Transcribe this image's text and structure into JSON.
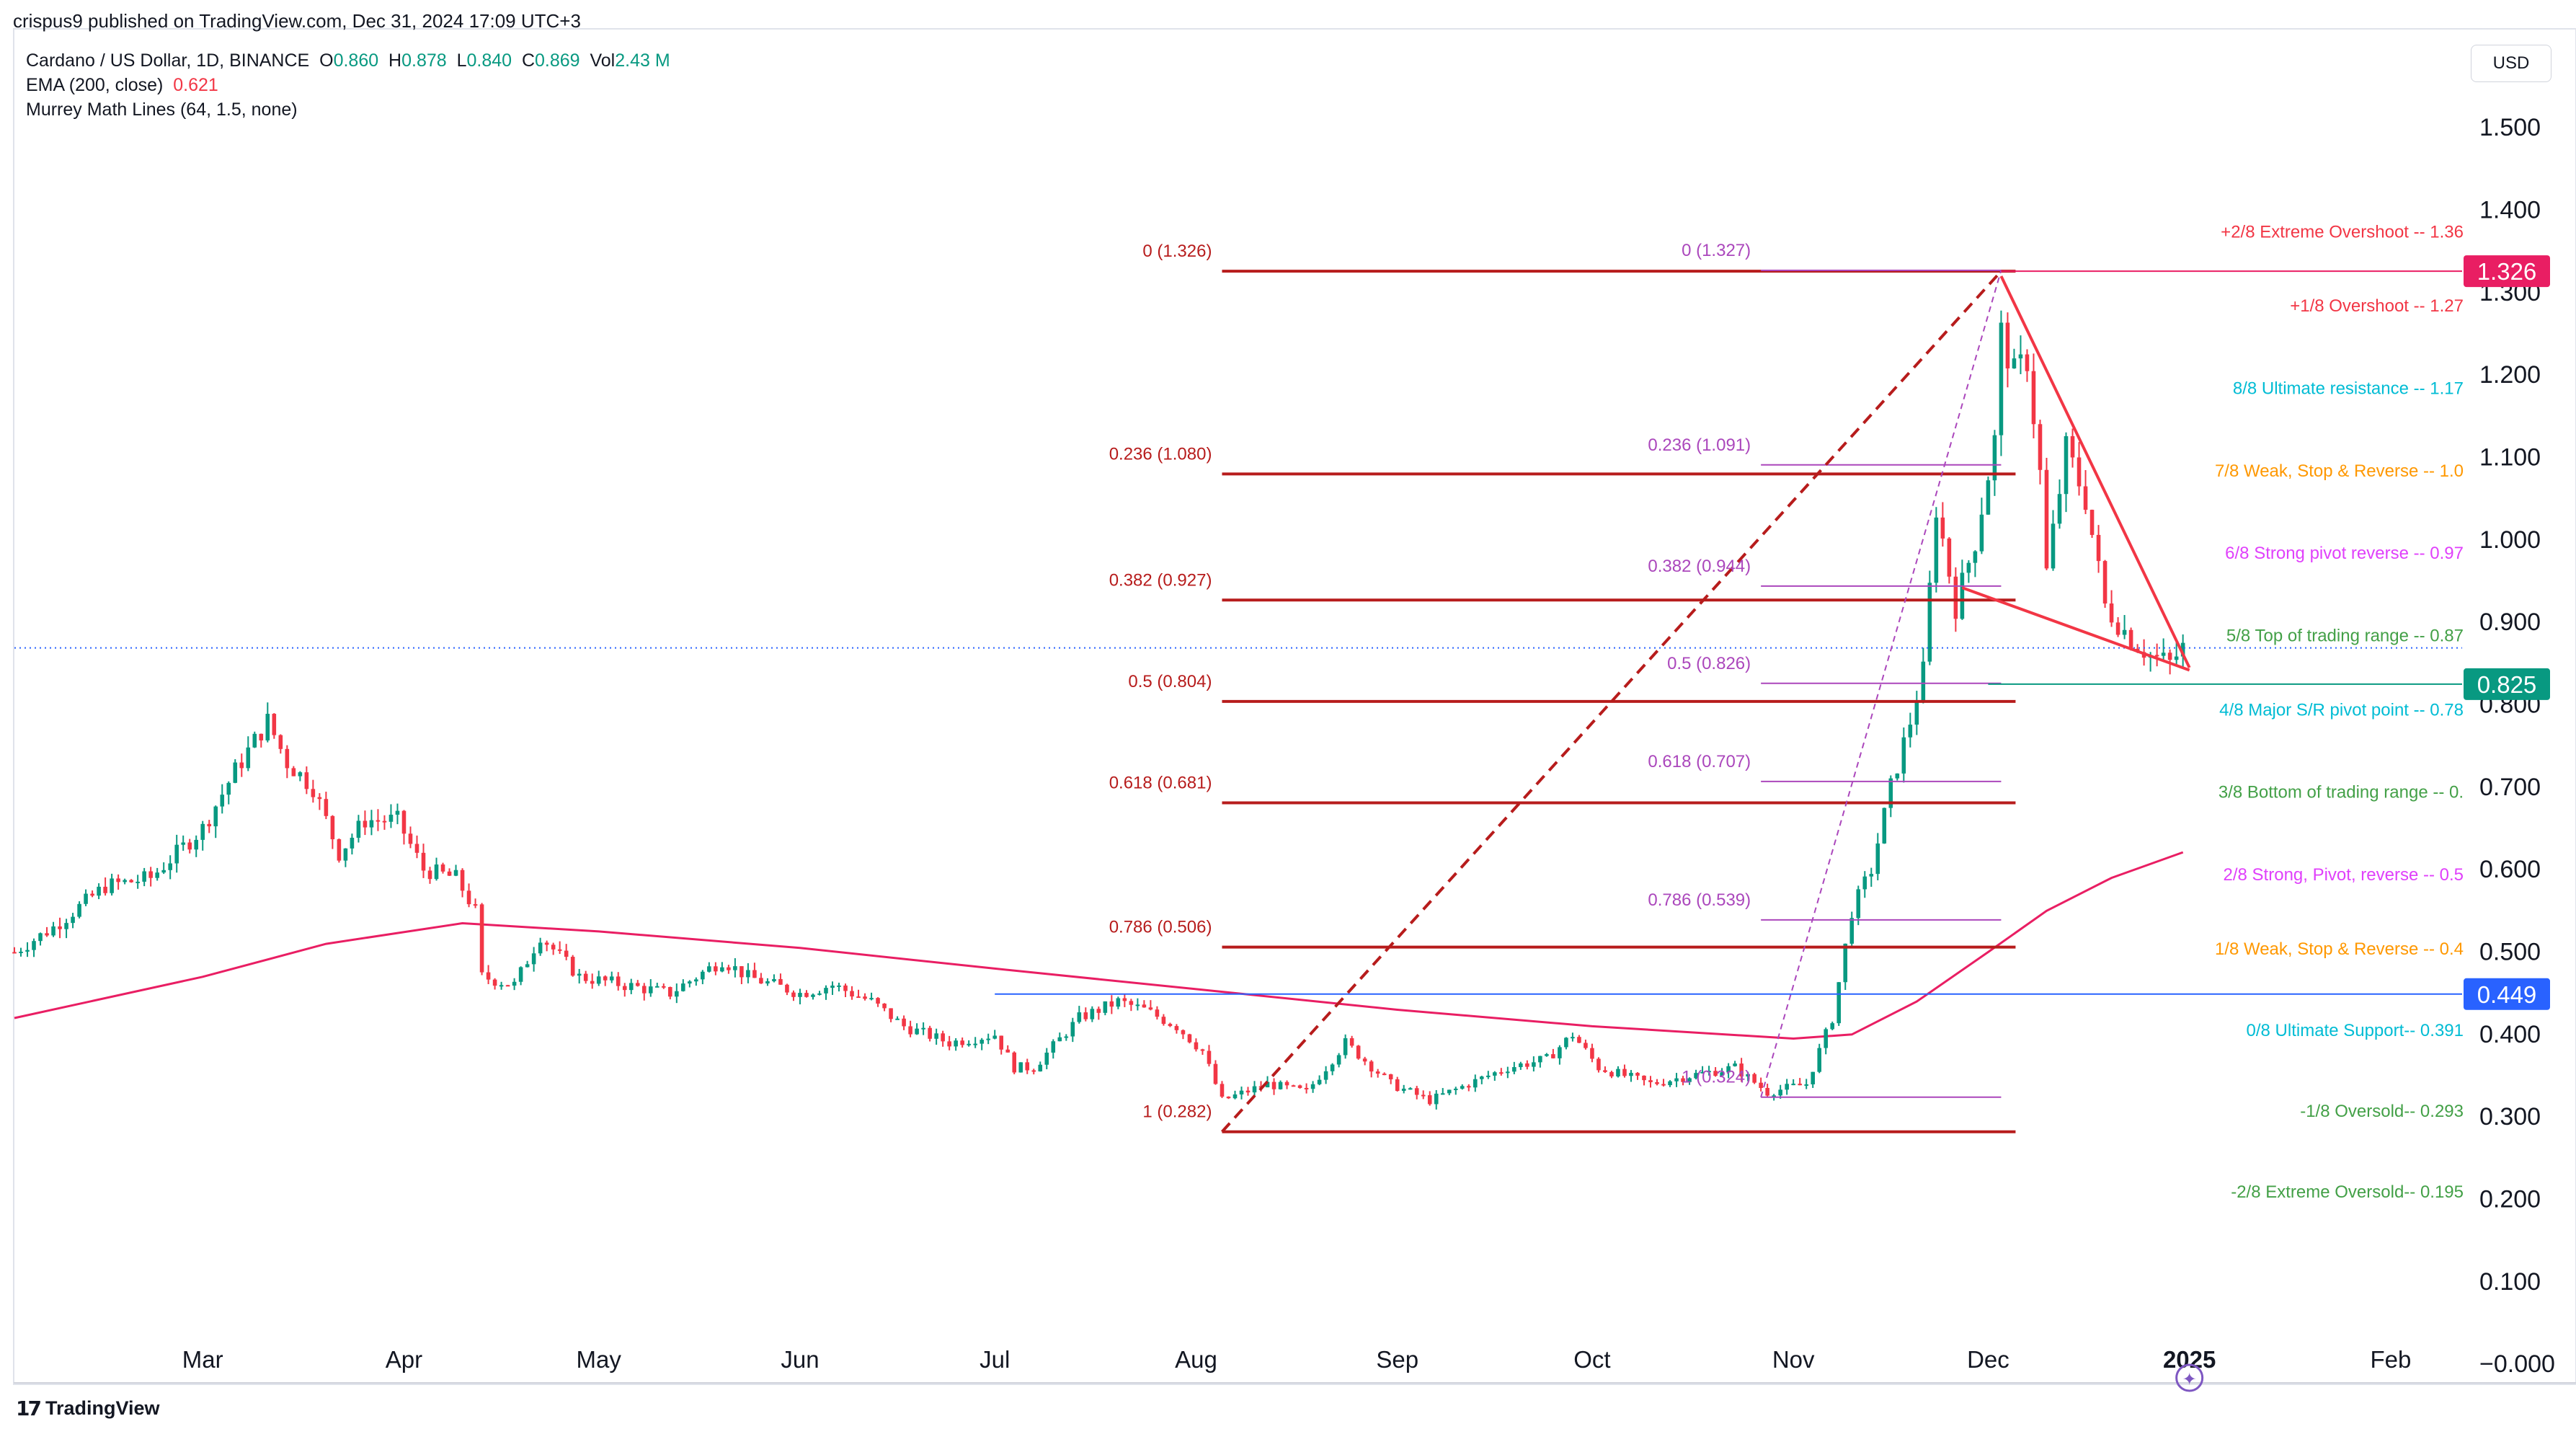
{
  "header": {
    "published": "crispus9 published on TradingView.com, Dec 31, 2024 17:09 UTC+3",
    "symbol": "Cardano / US Dollar, 1D, BINANCE",
    "o_label": "O",
    "o_value": "0.860",
    "h_label": "H",
    "h_value": "0.878",
    "l_label": "L",
    "l_value": "0.840",
    "c_label": "C",
    "c_value": "0.869",
    "vol_label": "Vol",
    "vol_value": "2.43 M",
    "ema_label": "EMA (200, close)",
    "ema_value": "0.621",
    "murrey_label": "Murrey Math Lines (64, 1.5, none)",
    "currency": "USD"
  },
  "footer": {
    "brand": "TradingView",
    "logo_icon": "tradingview-logo-icon"
  },
  "chart_data": {
    "type": "candlestick",
    "title": "Cardano / US Dollar, 1D, BINANCE",
    "y_ticks": [
      "1.500",
      "1.400",
      "1.300",
      "1.200",
      "1.100",
      "1.000",
      "0.900",
      "0.800",
      "0.700",
      "0.600",
      "0.500",
      "0.400",
      "0.300",
      "0.200",
      "0.100",
      "−0.000"
    ],
    "ylim": [
      -0.02,
      1.62
    ],
    "x_ticks": [
      {
        "label": "Mar",
        "date": "2024-03-01"
      },
      {
        "label": "Apr",
        "date": "2024-04-01"
      },
      {
        "label": "May",
        "date": "2024-05-01"
      },
      {
        "label": "Jun",
        "date": "2024-06-01"
      },
      {
        "label": "Jul",
        "date": "2024-07-01"
      },
      {
        "label": "Aug",
        "date": "2024-08-01"
      },
      {
        "label": "Sep",
        "date": "2024-09-01"
      },
      {
        "label": "Oct",
        "date": "2024-10-01"
      },
      {
        "label": "Nov",
        "date": "2024-11-01"
      },
      {
        "label": "Dec",
        "date": "2024-12-01"
      },
      {
        "label": "2025",
        "date": "2025-01-01",
        "bold": true
      },
      {
        "label": "Feb",
        "date": "2025-02-01"
      }
    ],
    "xlim": [
      "2024-02-01",
      "2025-02-12"
    ],
    "price_anchors": [
      [
        "2024-02-01",
        0.5
      ],
      [
        "2024-02-07",
        0.53
      ],
      [
        "2024-02-15",
        0.58
      ],
      [
        "2024-02-22",
        0.59
      ],
      [
        "2024-03-01",
        0.65
      ],
      [
        "2024-03-06",
        0.72
      ],
      [
        "2024-03-11",
        0.78
      ],
      [
        "2024-03-14",
        0.73
      ],
      [
        "2024-03-18",
        0.7
      ],
      [
        "2024-03-22",
        0.62
      ],
      [
        "2024-03-26",
        0.66
      ],
      [
        "2024-03-31",
        0.66
      ],
      [
        "2024-04-04",
        0.6
      ],
      [
        "2024-04-09",
        0.59
      ],
      [
        "2024-04-12",
        0.55
      ],
      [
        "2024-04-13",
        0.47
      ],
      [
        "2024-04-18",
        0.46
      ],
      [
        "2024-04-22",
        0.52
      ],
      [
        "2024-04-28",
        0.47
      ],
      [
        "2024-05-05",
        0.46
      ],
      [
        "2024-05-12",
        0.45
      ],
      [
        "2024-05-16",
        0.47
      ],
      [
        "2024-05-20",
        0.49
      ],
      [
        "2024-05-24",
        0.47
      ],
      [
        "2024-06-01",
        0.45
      ],
      [
        "2024-06-06",
        0.46
      ],
      [
        "2024-06-12",
        0.44
      ],
      [
        "2024-06-17",
        0.41
      ],
      [
        "2024-06-24",
        0.39
      ],
      [
        "2024-07-01",
        0.4
      ],
      [
        "2024-07-04",
        0.36
      ],
      [
        "2024-07-07",
        0.36
      ],
      [
        "2024-07-14",
        0.42
      ],
      [
        "2024-07-20",
        0.44
      ],
      [
        "2024-07-24",
        0.43
      ],
      [
        "2024-07-29",
        0.41
      ],
      [
        "2024-08-02",
        0.38
      ],
      [
        "2024-08-05",
        0.32
      ],
      [
        "2024-08-12",
        0.34
      ],
      [
        "2024-08-18",
        0.33
      ],
      [
        "2024-08-24",
        0.39
      ],
      [
        "2024-08-31",
        0.34
      ],
      [
        "2024-09-06",
        0.32
      ],
      [
        "2024-09-12",
        0.34
      ],
      [
        "2024-09-18",
        0.36
      ],
      [
        "2024-09-24",
        0.37
      ],
      [
        "2024-09-28",
        0.4
      ],
      [
        "2024-10-02",
        0.36
      ],
      [
        "2024-10-10",
        0.34
      ],
      [
        "2024-10-16",
        0.35
      ],
      [
        "2024-10-23",
        0.36
      ],
      [
        "2024-10-28",
        0.33
      ],
      [
        "2024-11-03",
        0.34
      ],
      [
        "2024-11-07",
        0.42
      ],
      [
        "2024-11-10",
        0.55
      ],
      [
        "2024-11-13",
        0.6
      ],
      [
        "2024-11-16",
        0.7
      ],
      [
        "2024-11-19",
        0.78
      ],
      [
        "2024-11-21",
        0.84
      ],
      [
        "2024-11-23",
        1.04
      ],
      [
        "2024-11-26",
        0.92
      ],
      [
        "2024-11-29",
        1.0
      ],
      [
        "2024-12-02",
        1.12
      ],
      [
        "2024-12-03",
        1.25
      ],
      [
        "2024-12-05",
        1.2
      ],
      [
        "2024-12-07",
        1.22
      ],
      [
        "2024-12-09",
        1.08
      ],
      [
        "2024-12-10",
        0.96
      ],
      [
        "2024-12-13",
        1.11
      ],
      [
        "2024-12-16",
        1.05
      ],
      [
        "2024-12-19",
        0.92
      ],
      [
        "2024-12-20",
        0.91
      ],
      [
        "2024-12-23",
        0.88
      ],
      [
        "2024-12-26",
        0.86
      ],
      [
        "2024-12-29",
        0.85
      ],
      [
        "2024-12-31",
        0.869
      ]
    ],
    "ema_200": [
      [
        "2024-02-01",
        0.42
      ],
      [
        "2024-03-01",
        0.47
      ],
      [
        "2024-03-20",
        0.51
      ],
      [
        "2024-04-10",
        0.535
      ],
      [
        "2024-05-01",
        0.525
      ],
      [
        "2024-06-01",
        0.505
      ],
      [
        "2024-07-01",
        0.48
      ],
      [
        "2024-08-01",
        0.455
      ],
      [
        "2024-09-01",
        0.43
      ],
      [
        "2024-10-01",
        0.41
      ],
      [
        "2024-11-01",
        0.395
      ],
      [
        "2024-11-10",
        0.4
      ],
      [
        "2024-11-20",
        0.44
      ],
      [
        "2024-12-01",
        0.5
      ],
      [
        "2024-12-10",
        0.55
      ],
      [
        "2024-12-20",
        0.59
      ],
      [
        "2024-12-31",
        0.621
      ]
    ],
    "fib_retracement_left": {
      "line_color": "#b71c1c",
      "start_date": "2024-08-05",
      "end_date": "2024-12-03",
      "levels": [
        {
          "label": "0 (1.326)",
          "value": 1.326
        },
        {
          "label": "0.236 (1.080)",
          "value": 1.08
        },
        {
          "label": "0.382 (0.927)",
          "value": 0.927
        },
        {
          "label": "0.5 (0.804)",
          "value": 0.804
        },
        {
          "label": "0.618 (0.681)",
          "value": 0.681
        },
        {
          "label": "0.786 (0.506)",
          "value": 0.506
        },
        {
          "label": "1 (0.282)",
          "value": 0.282
        }
      ]
    },
    "fib_retracement_right": {
      "line_color": "#ab47bc",
      "start_date": "2024-10-27",
      "end_date": "2024-12-03",
      "levels": [
        {
          "label": "0 (1.327)",
          "value": 1.327
        },
        {
          "label": "0.236 (1.091)",
          "value": 1.091
        },
        {
          "label": "0.382 (0.944)",
          "value": 0.944
        },
        {
          "label": "0.5 (0.826)",
          "value": 0.826
        },
        {
          "label": "0.618 (0.707)",
          "value": 0.707
        },
        {
          "label": "0.786 (0.539)",
          "value": 0.539
        },
        {
          "label": "1 (0.324)",
          "value": 0.324
        }
      ]
    },
    "murrey_lines": [
      {
        "label": "+2/8 Extreme Overshoot --  1.36",
        "value": 1.36,
        "color": "#f23645"
      },
      {
        "label": "+1/8 Overshoot --  1.27",
        "value": 1.27,
        "color": "#f23645"
      },
      {
        "label": "8/8 Ultimate resistance --  1.17",
        "value": 1.17,
        "color": "#00bcd4"
      },
      {
        "label": "7/8 Weak, Stop & Reverse --  1.0",
        "value": 1.07,
        "color": "#ff9800"
      },
      {
        "label": "6/8 Strong pivot reverse --  0.97",
        "value": 0.97,
        "color": "#e040fb"
      },
      {
        "label": "5/8 Top of trading range --  0.87",
        "value": 0.87,
        "color": "#43a047"
      },
      {
        "label": "4/8 Major S/R pivot point --  0.78",
        "value": 0.78,
        "color": "#00bcd4"
      },
      {
        "label": "3/8 Bottom of trading range --  0.",
        "value": 0.68,
        "color": "#43a047"
      },
      {
        "label": "2/8 Strong, Pivot, reverse --  0.5",
        "value": 0.58,
        "color": "#e040fb"
      },
      {
        "label": "1/8 Weak, Stop & Reverse --  0.4",
        "value": 0.49,
        "color": "#ff9800"
      },
      {
        "label": "0/8 Ultimate Support--  0.391",
        "value": 0.391,
        "color": "#00bcd4"
      },
      {
        "label": "-1/8 Oversold--  0.293",
        "value": 0.293,
        "color": "#43a047"
      },
      {
        "label": "-2/8 Extreme Oversold--  0.195",
        "value": 0.195,
        "color": "#43a047"
      }
    ],
    "price_tags": [
      {
        "label": "1.326",
        "value": 1.326,
        "color": "#e91e63"
      },
      {
        "label": "0.825",
        "value": 0.825,
        "color": "#089981"
      },
      {
        "label": "0.449",
        "value": 0.449,
        "color": "#2962ff"
      }
    ],
    "horizontal_lines": [
      {
        "value": 0.449,
        "start_date": "2024-07-01",
        "color": "#2962ff"
      },
      {
        "value": 0.825,
        "start_date": "2024-12-01",
        "color": "#089981"
      },
      {
        "value": 1.326,
        "start_date": "2024-12-03",
        "color": "#e91e63"
      }
    ],
    "current_price_line": 0.869,
    "trend_lines": [
      {
        "from": [
          "2024-08-05",
          0.282
        ],
        "to": [
          "2024-12-03",
          1.326
        ],
        "style": "dashed",
        "color": "#b71c1c"
      },
      {
        "from": [
          "2024-10-27",
          0.324
        ],
        "to": [
          "2024-12-03",
          1.327
        ],
        "style": "dotted",
        "color": "#ab47bc"
      },
      {
        "from": [
          "2024-12-03",
          1.32
        ],
        "to": [
          "2025-01-01",
          0.845
        ],
        "style": "solid",
        "color": "#f23645"
      },
      {
        "from": [
          "2024-11-27",
          0.942
        ],
        "to": [
          "2025-01-01",
          0.842
        ],
        "style": "solid",
        "color": "#f23645"
      }
    ],
    "colors": {
      "up": "#089981",
      "down": "#f23645",
      "ema": "#e91e63",
      "grid": "#f0f3fa"
    }
  }
}
